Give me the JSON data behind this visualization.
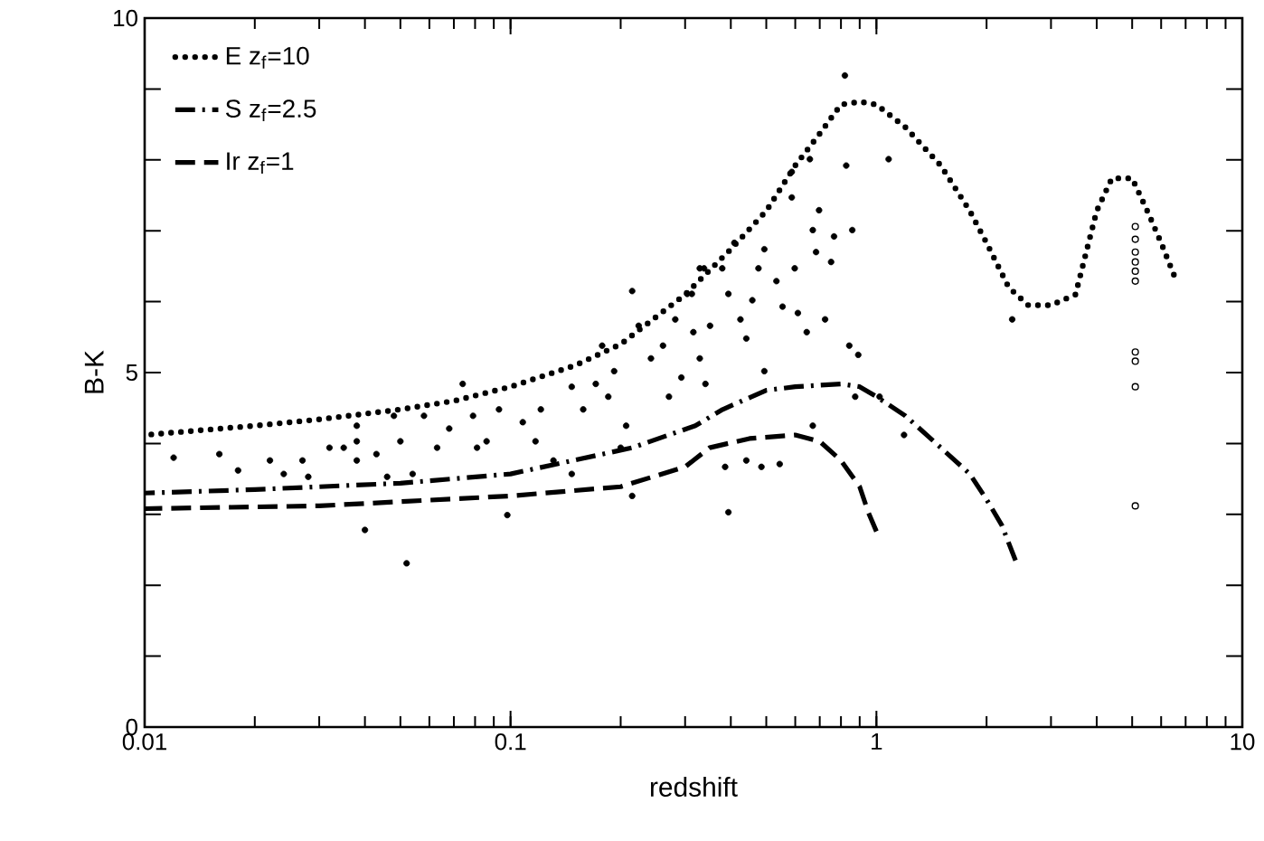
{
  "chart_data": {
    "type": "scatter",
    "xlabel": "redshift",
    "ylabel": "B-K",
    "log": "x",
    "xlim": [
      0.01,
      10
    ],
    "xticks": [
      0.01,
      0.1,
      1,
      10
    ],
    "ylim": [
      0,
      10
    ],
    "yticks": [
      0,
      {
        "value": 1,
        "label": null
      },
      {
        "value": 2,
        "label": null
      },
      {
        "value": 3,
        "label": null
      },
      {
        "value": 4,
        "label": null
      },
      5,
      {
        "value": 6,
        "label": null
      },
      {
        "value": 7,
        "label": null
      },
      {
        "value": 8,
        "label": null
      },
      {
        "value": 9,
        "label": null
      },
      10
    ],
    "grid": false,
    "legend": "top left",
    "series": [
      {
        "name": "E   z$_{f}$=10",
        "type": "line",
        "line_style": "dotted",
        "marker": "none",
        "color": "#000000",
        "x": [
          0.01,
          0.02,
          0.03,
          0.05,
          0.07,
          0.1,
          0.15,
          0.2,
          0.3,
          0.4,
          0.5,
          0.6,
          0.7,
          0.8,
          0.9,
          1.0,
          1.2,
          1.5,
          1.8,
          2.0,
          2.3,
          2.6,
          3.0,
          3.5,
          4.0,
          4.4,
          5.0,
          5.5,
          6.0,
          6.5
        ],
        "values": [
          4.12,
          4.25,
          4.34,
          4.48,
          4.6,
          4.8,
          5.1,
          5.4,
          6.1,
          6.74,
          7.28,
          7.92,
          8.37,
          8.78,
          8.82,
          8.78,
          8.46,
          7.92,
          7.28,
          6.83,
          6.2,
          5.95,
          5.95,
          6.1,
          7.28,
          7.74,
          7.74,
          7.28,
          6.83,
          6.38
        ]
      },
      {
        "name": "S   z$_{f}$=2.5",
        "type": "line",
        "line_style": "dashdot",
        "marker": "none",
        "color": "#000000",
        "x": [
          0.01,
          0.02,
          0.05,
          0.1,
          0.215,
          0.32,
          0.38,
          0.5,
          0.6,
          0.8,
          0.9,
          1.0,
          1.2,
          1.5,
          1.8,
          2.0,
          2.2,
          2.4
        ],
        "values": [
          3.3,
          3.35,
          3.44,
          3.57,
          3.94,
          4.25,
          4.48,
          4.75,
          4.8,
          4.84,
          4.8,
          4.66,
          4.39,
          3.94,
          3.57,
          3.21,
          2.85,
          2.35
        ]
      },
      {
        "name": "Ir   z$_{f}$=1",
        "type": "line",
        "line_style": "dashed",
        "marker": "none",
        "color": "#000000",
        "x": [
          0.01,
          0.03,
          0.1,
          0.2,
          0.3,
          0.35,
          0.45,
          0.6,
          0.7,
          0.8,
          0.9,
          0.95,
          1.0
        ],
        "values": [
          3.08,
          3.12,
          3.26,
          3.39,
          3.67,
          3.94,
          4.07,
          4.12,
          4.03,
          3.76,
          3.39,
          3.03,
          2.76
        ]
      },
      {
        "marker": "circle",
        "color": "#000000",
        "x": [
          0.012,
          0.016,
          0.018,
          0.022,
          0.024,
          0.027,
          0.028,
          0.032,
          0.035,
          0.038,
          0.038,
          0.038,
          0.04,
          0.043,
          0.046,
          0.048,
          0.05,
          0.052,
          0.054,
          0.058,
          0.063,
          0.068,
          0.074,
          0.079,
          0.081,
          0.086,
          0.093,
          0.098,
          0.108,
          0.117,
          0.121,
          0.131,
          0.147,
          0.147,
          0.158,
          0.171,
          0.178,
          0.185,
          0.192,
          0.2,
          0.207,
          0.215,
          0.215,
          0.224,
          0.242,
          0.261,
          0.271,
          0.282,
          0.293,
          0.304,
          0.316,
          0.329,
          0.329,
          0.341,
          0.313,
          0.338,
          0.351,
          0.379,
          0.394,
          0.409,
          0.425,
          0.441,
          0.458,
          0.476,
          0.494,
          0.533,
          0.554,
          0.587,
          0.587,
          0.598,
          0.61,
          0.645,
          0.658,
          0.67,
          0.697,
          0.724,
          0.766,
          0.827,
          0.82,
          0.859,
          0.875,
          0.843,
          1.08,
          0.494,
          0.386,
          0.394,
          0.441,
          0.485,
          0.544,
          0.67,
          0.892,
          1.02,
          1.19,
          2.35,
          0.752,
          0.684
        ],
        "values": [
          3.8,
          3.85,
          3.62,
          3.76,
          3.57,
          3.76,
          3.53,
          3.94,
          3.94,
          4.25,
          4.03,
          3.76,
          2.78,
          3.85,
          3.53,
          4.39,
          4.03,
          2.31,
          3.57,
          4.39,
          3.94,
          4.21,
          4.84,
          4.39,
          3.94,
          4.03,
          4.48,
          2.99,
          4.3,
          4.03,
          4.48,
          3.76,
          4.8,
          3.57,
          4.48,
          4.84,
          5.38,
          4.66,
          5.02,
          3.94,
          4.25,
          6.15,
          3.26,
          5.66,
          5.2,
          5.38,
          4.66,
          5.75,
          4.93,
          6.11,
          5.57,
          6.47,
          5.2,
          4.84,
          6.11,
          6.47,
          5.66,
          6.47,
          6.11,
          6.83,
          5.75,
          5.48,
          6.02,
          6.47,
          6.74,
          6.29,
          5.93,
          7.83,
          7.47,
          6.47,
          5.84,
          5.57,
          8.01,
          7.01,
          7.29,
          5.75,
          6.92,
          7.92,
          9.19,
          7.01,
          4.66,
          5.38,
          8.01,
          5.02,
          3.67,
          3.03,
          3.76,
          3.67,
          3.71,
          4.25,
          5.25,
          4.66,
          4.12,
          5.75,
          6.56,
          6.7
        ]
      },
      {
        "marker": "open circle",
        "color": "#000000",
        "x": [
          5.1,
          5.1,
          5.1,
          5.1,
          5.1,
          5.1,
          5.1,
          5.1,
          5.1,
          5.1
        ],
        "values": [
          7.06,
          6.88,
          6.7,
          6.56,
          6.43,
          6.29,
          5.29,
          5.16,
          4.8,
          3.12
        ]
      }
    ]
  }
}
